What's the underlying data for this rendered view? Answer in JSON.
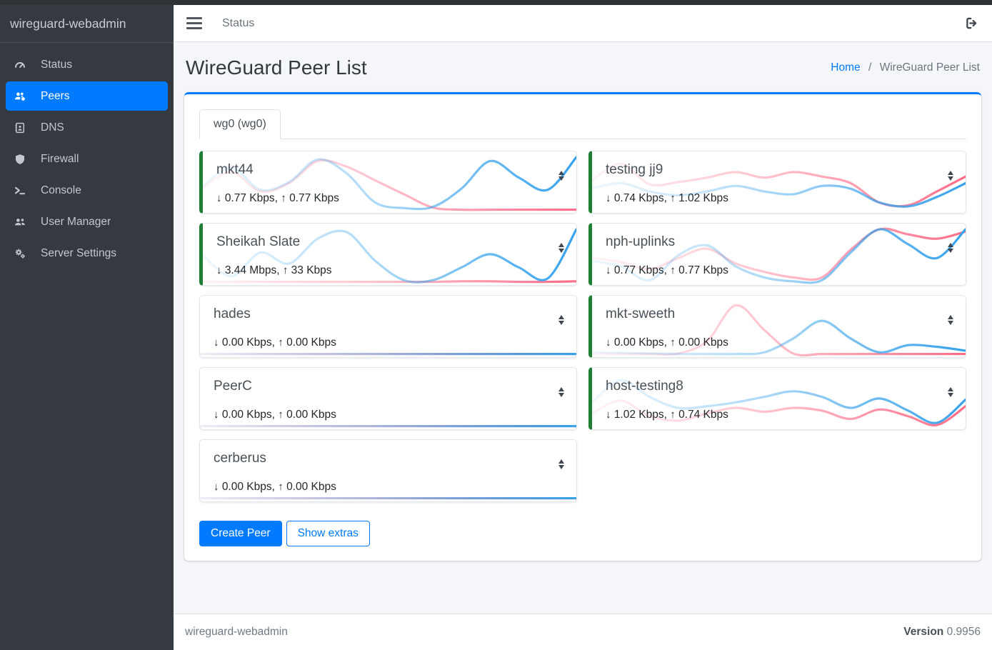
{
  "sidebar": {
    "brand": "wireguard-webadmin",
    "items": [
      {
        "label": "Status",
        "icon": "gauge-icon",
        "active": false
      },
      {
        "label": "Peers",
        "icon": "users-gear-icon",
        "active": true
      },
      {
        "label": "DNS",
        "icon": "address-book-icon",
        "active": false
      },
      {
        "label": "Firewall",
        "icon": "shield-icon",
        "active": false
      },
      {
        "label": "Console",
        "icon": "terminal-icon",
        "active": false
      },
      {
        "label": "User Manager",
        "icon": "users-icon",
        "active": false
      },
      {
        "label": "Server Settings",
        "icon": "gears-icon",
        "active": false
      }
    ]
  },
  "topbar": {
    "menu_link": "Status",
    "logout_icon": "sign-out-icon"
  },
  "page": {
    "title": "WireGuard Peer List",
    "breadcrumb": {
      "home": "Home",
      "separator": "/",
      "current": "WireGuard Peer List"
    }
  },
  "tabs": [
    {
      "label": "wg0 (wg0)"
    }
  ],
  "labels": {
    "rate_separator": ", "
  },
  "icons": {
    "down_arrow": "↓",
    "up_arrow": "↑",
    "sort_icon": "sort-up-down"
  },
  "actions": {
    "create_peer": "Create Peer",
    "show_extras": "Show extras"
  },
  "footer": {
    "brand": "wireguard-webadmin",
    "version_label": "Version",
    "version_value": "0.9956"
  },
  "colors": {
    "sidebar_bg": "#343a40",
    "active_item": "#007bff",
    "accent": "#007bff",
    "connected_border": "#1e7e34",
    "spark_download": "#36a2eb",
    "spark_upload": "#ff6d88",
    "content_bg": "#f4f6f9"
  },
  "peers": [
    {
      "name": "mkt44",
      "down": "0.77 Kbps",
      "up": "0.77 Kbps",
      "connected": true,
      "column": "left",
      "spark": {
        "rx": [
          0.45,
          0.78,
          0.38,
          0.52,
          0.93,
          0.68,
          0.15,
          0.05,
          0.07,
          0.4,
          0.9,
          0.6,
          0.38,
          0.97
        ],
        "tx": [
          0.42,
          0.7,
          0.35,
          0.5,
          0.9,
          0.8,
          0.55,
          0.3,
          0.06,
          0.02,
          0.02,
          0.02,
          0.02,
          0.02
        ]
      }
    },
    {
      "name": "Sheikah Slate",
      "down": "3.44 Mbps",
      "up": "33 Kbps",
      "connected": true,
      "column": "left",
      "spark": {
        "rx": [
          0.5,
          0.12,
          0.55,
          0.35,
          0.8,
          0.92,
          0.4,
          0.05,
          0.05,
          0.28,
          0.52,
          0.28,
          0.08,
          0.97
        ],
        "tx": [
          0.02,
          0.02,
          0.02,
          0.02,
          0.02,
          0.02,
          0.02,
          0.02,
          0.02,
          0.03,
          0.03,
          0.02,
          0.02,
          0.03
        ]
      }
    },
    {
      "name": "hades",
      "down": "0.00 Kbps",
      "up": "0.00 Kbps",
      "connected": false,
      "column": "left",
      "spark": {
        "rx": [
          0.02,
          0.02,
          0.02,
          0.02,
          0.02,
          0.02,
          0.02,
          0.02,
          0.02,
          0.02,
          0.02,
          0.02,
          0.02,
          0.02
        ],
        "tx": [
          0.02,
          0.02,
          0.02,
          0.02,
          0.02,
          0.02,
          0.02,
          0.02,
          0.02,
          0.02,
          0.02,
          0.02,
          0.02,
          0.02
        ]
      }
    },
    {
      "name": "PeerC",
      "down": "0.00 Kbps",
      "up": "0.00 Kbps",
      "connected": false,
      "column": "left",
      "spark": {
        "rx": [
          0.02,
          0.02,
          0.02,
          0.02,
          0.02,
          0.02,
          0.02,
          0.02,
          0.02,
          0.02,
          0.02,
          0.02,
          0.02,
          0.02
        ],
        "tx": [
          0.02,
          0.02,
          0.02,
          0.02,
          0.02,
          0.02,
          0.02,
          0.02,
          0.02,
          0.02,
          0.02,
          0.02,
          0.02,
          0.02
        ]
      }
    },
    {
      "name": "cerberus",
      "down": "0.00 Kbps",
      "up": "0.00 Kbps",
      "connected": false,
      "column": "left",
      "spark": {
        "rx": [
          0.02,
          0.02,
          0.02,
          0.02,
          0.02,
          0.02,
          0.02,
          0.02,
          0.02,
          0.02,
          0.02,
          0.02,
          0.02,
          0.02
        ],
        "tx": [
          0.02,
          0.02,
          0.02,
          0.02,
          0.02,
          0.02,
          0.02,
          0.02,
          0.02,
          0.02,
          0.02,
          0.02,
          0.02,
          0.02
        ]
      }
    },
    {
      "name": "testing jj9",
      "down": "0.74 Kbps",
      "up": "1.02 Kbps",
      "connected": true,
      "column": "right",
      "spark": {
        "rx": [
          0.4,
          0.5,
          0.35,
          0.28,
          0.35,
          0.45,
          0.35,
          0.3,
          0.45,
          0.4,
          0.15,
          0.08,
          0.25,
          0.5
        ],
        "tx": [
          0.55,
          0.85,
          0.48,
          0.52,
          0.6,
          0.7,
          0.6,
          0.7,
          0.62,
          0.5,
          0.15,
          0.1,
          0.35,
          0.62
        ]
      }
    },
    {
      "name": "nph-uplinks",
      "down": "0.77 Kbps",
      "up": "0.77 Kbps",
      "connected": true,
      "column": "right",
      "spark": {
        "rx": [
          0.4,
          0.3,
          0.05,
          0.5,
          0.68,
          0.3,
          0.1,
          0.03,
          0.05,
          0.55,
          0.97,
          0.7,
          0.45,
          0.97
        ],
        "tx": [
          0.45,
          0.38,
          0.25,
          0.45,
          0.62,
          0.35,
          0.2,
          0.1,
          0.1,
          0.6,
          0.97,
          0.88,
          0.8,
          0.93
        ]
      }
    },
    {
      "name": "mkt-sweeth",
      "down": "0.00 Kbps",
      "up": "0.00 Kbps",
      "connected": true,
      "column": "right",
      "spark": {
        "rx": [
          0.05,
          0.04,
          0.03,
          0.02,
          0.02,
          0.02,
          0.05,
          0.3,
          0.62,
          0.3,
          0.05,
          0.18,
          0.15,
          0.08
        ],
        "tx": [
          0.02,
          0.02,
          0.02,
          0.03,
          0.25,
          0.9,
          0.45,
          0.03,
          0.02,
          0.02,
          0.02,
          0.02,
          0.02,
          0.02
        ]
      }
    },
    {
      "name": "host-testing8",
      "down": "1.02 Kbps",
      "up": "0.74 Kbps",
      "connected": true,
      "column": "right",
      "spark": {
        "rx": [
          0.45,
          0.85,
          0.55,
          0.35,
          0.38,
          0.45,
          0.55,
          0.65,
          0.55,
          0.35,
          0.52,
          0.3,
          0.08,
          0.5
        ],
        "tx": [
          0.25,
          0.48,
          0.2,
          0.12,
          0.25,
          0.35,
          0.28,
          0.35,
          0.3,
          0.15,
          0.32,
          0.2,
          0.04,
          0.38
        ]
      }
    }
  ]
}
